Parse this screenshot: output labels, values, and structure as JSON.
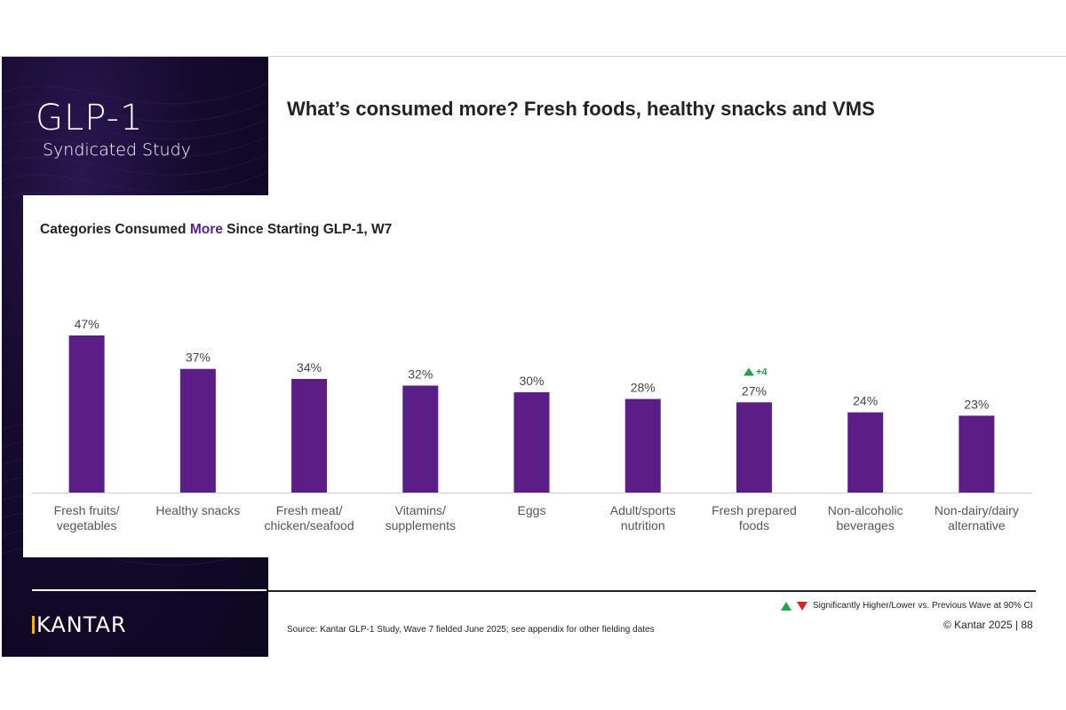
{
  "header": {
    "badge_title": "GLP-1",
    "badge_subtitle": "Syndicated Study",
    "page_title": "What’s consumed more? Fresh foods, healthy snacks and VMS"
  },
  "chart_heading": {
    "prefix": "Categories Consumed ",
    "accent": "More",
    "suffix": " Since Starting GLP-1, W7"
  },
  "chart_data": {
    "type": "bar",
    "title": "Categories Consumed More Since Starting GLP-1, W7",
    "categories": [
      [
        "Fresh fruits/",
        "vegetables"
      ],
      [
        "Healthy snacks"
      ],
      [
        "Fresh meat/",
        "chicken/seafood"
      ],
      [
        "Vitamins/",
        "supplements"
      ],
      [
        "Eggs"
      ],
      [
        "Adult/sports",
        "nutrition"
      ],
      [
        "Fresh prepared",
        "foods"
      ],
      [
        "Non-alcoholic",
        "beverages"
      ],
      [
        "Non-dairy/dairy",
        "alternative"
      ]
    ],
    "values": [
      47,
      37,
      34,
      32,
      30,
      28,
      27,
      24,
      23
    ],
    "labels": [
      "47%",
      "37%",
      "34%",
      "32%",
      "30%",
      "28%",
      "27%",
      "24%",
      "23%"
    ],
    "annotations": [
      {
        "index": 6,
        "text": "+4",
        "direction": "up"
      }
    ],
    "ylim": [
      0,
      52
    ],
    "bar_color": "#5b1e86",
    "grid": false
  },
  "footer": {
    "brand": "KANTAR",
    "legend_note": "Significantly Higher/Lower vs. Previous Wave at 90% CI",
    "source": "Source: Kantar GLP-1 Study, Wave 7 fielded June 2025; see appendix for other fielding dates",
    "copyright": "© Kantar 2025 | 88"
  },
  "colors": {
    "accent": "#5b1e86",
    "up": "#22a34a",
    "down": "#e02020"
  }
}
